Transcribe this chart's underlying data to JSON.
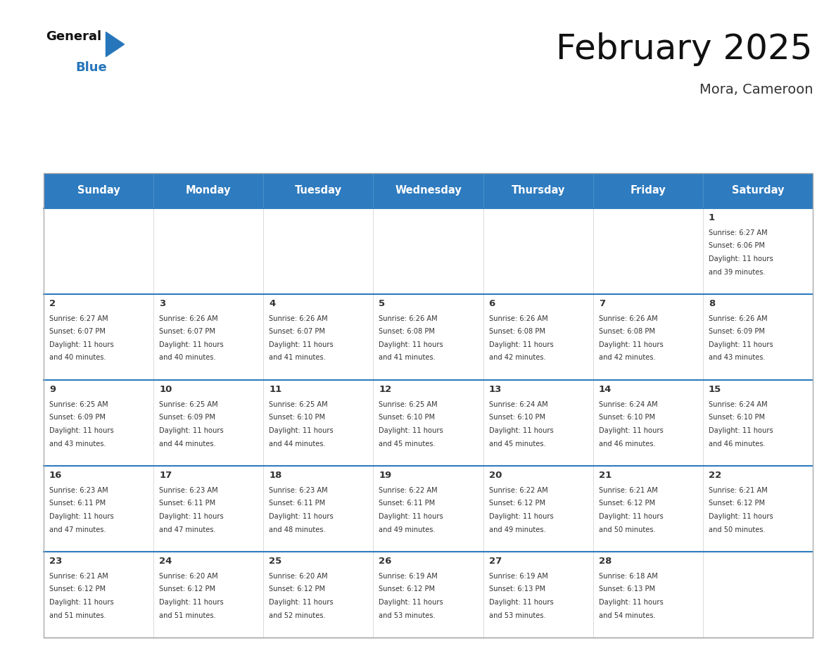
{
  "title": "February 2025",
  "subtitle": "Mora, Cameroon",
  "days_of_week": [
    "Sunday",
    "Monday",
    "Tuesday",
    "Wednesday",
    "Thursday",
    "Friday",
    "Saturday"
  ],
  "header_bg": "#2E7BBF",
  "header_text": "#FFFFFF",
  "row_separator_color": "#2E7BBF",
  "cell_bg": "#FFFFFF",
  "day_num_color": "#333333",
  "text_color": "#333333",
  "title_color": "#111111",
  "subtitle_color": "#333333",
  "logo_general_color": "#111111",
  "logo_blue_color": "#2776BB",
  "calendar": [
    [
      null,
      null,
      null,
      null,
      null,
      null,
      {
        "day": 1,
        "sunrise": "6:27 AM",
        "sunset": "6:06 PM",
        "daylight": "11 hours and 39 minutes."
      }
    ],
    [
      {
        "day": 2,
        "sunrise": "6:27 AM",
        "sunset": "6:07 PM",
        "daylight": "11 hours and 40 minutes."
      },
      {
        "day": 3,
        "sunrise": "6:26 AM",
        "sunset": "6:07 PM",
        "daylight": "11 hours and 40 minutes."
      },
      {
        "day": 4,
        "sunrise": "6:26 AM",
        "sunset": "6:07 PM",
        "daylight": "11 hours and 41 minutes."
      },
      {
        "day": 5,
        "sunrise": "6:26 AM",
        "sunset": "6:08 PM",
        "daylight": "11 hours and 41 minutes."
      },
      {
        "day": 6,
        "sunrise": "6:26 AM",
        "sunset": "6:08 PM",
        "daylight": "11 hours and 42 minutes."
      },
      {
        "day": 7,
        "sunrise": "6:26 AM",
        "sunset": "6:08 PM",
        "daylight": "11 hours and 42 minutes."
      },
      {
        "day": 8,
        "sunrise": "6:26 AM",
        "sunset": "6:09 PM",
        "daylight": "11 hours and 43 minutes."
      }
    ],
    [
      {
        "day": 9,
        "sunrise": "6:25 AM",
        "sunset": "6:09 PM",
        "daylight": "11 hours and 43 minutes."
      },
      {
        "day": 10,
        "sunrise": "6:25 AM",
        "sunset": "6:09 PM",
        "daylight": "11 hours and 44 minutes."
      },
      {
        "day": 11,
        "sunrise": "6:25 AM",
        "sunset": "6:10 PM",
        "daylight": "11 hours and 44 minutes."
      },
      {
        "day": 12,
        "sunrise": "6:25 AM",
        "sunset": "6:10 PM",
        "daylight": "11 hours and 45 minutes."
      },
      {
        "day": 13,
        "sunrise": "6:24 AM",
        "sunset": "6:10 PM",
        "daylight": "11 hours and 45 minutes."
      },
      {
        "day": 14,
        "sunrise": "6:24 AM",
        "sunset": "6:10 PM",
        "daylight": "11 hours and 46 minutes."
      },
      {
        "day": 15,
        "sunrise": "6:24 AM",
        "sunset": "6:10 PM",
        "daylight": "11 hours and 46 minutes."
      }
    ],
    [
      {
        "day": 16,
        "sunrise": "6:23 AM",
        "sunset": "6:11 PM",
        "daylight": "11 hours and 47 minutes."
      },
      {
        "day": 17,
        "sunrise": "6:23 AM",
        "sunset": "6:11 PM",
        "daylight": "11 hours and 47 minutes."
      },
      {
        "day": 18,
        "sunrise": "6:23 AM",
        "sunset": "6:11 PM",
        "daylight": "11 hours and 48 minutes."
      },
      {
        "day": 19,
        "sunrise": "6:22 AM",
        "sunset": "6:11 PM",
        "daylight": "11 hours and 49 minutes."
      },
      {
        "day": 20,
        "sunrise": "6:22 AM",
        "sunset": "6:12 PM",
        "daylight": "11 hours and 49 minutes."
      },
      {
        "day": 21,
        "sunrise": "6:21 AM",
        "sunset": "6:12 PM",
        "daylight": "11 hours and 50 minutes."
      },
      {
        "day": 22,
        "sunrise": "6:21 AM",
        "sunset": "6:12 PM",
        "daylight": "11 hours and 50 minutes."
      }
    ],
    [
      {
        "day": 23,
        "sunrise": "6:21 AM",
        "sunset": "6:12 PM",
        "daylight": "11 hours and 51 minutes."
      },
      {
        "day": 24,
        "sunrise": "6:20 AM",
        "sunset": "6:12 PM",
        "daylight": "11 hours and 51 minutes."
      },
      {
        "day": 25,
        "sunrise": "6:20 AM",
        "sunset": "6:12 PM",
        "daylight": "11 hours and 52 minutes."
      },
      {
        "day": 26,
        "sunrise": "6:19 AM",
        "sunset": "6:12 PM",
        "daylight": "11 hours and 53 minutes."
      },
      {
        "day": 27,
        "sunrise": "6:19 AM",
        "sunset": "6:13 PM",
        "daylight": "11 hours and 53 minutes."
      },
      {
        "day": 28,
        "sunrise": "6:18 AM",
        "sunset": "6:13 PM",
        "daylight": "11 hours and 54 minutes."
      },
      null
    ]
  ]
}
